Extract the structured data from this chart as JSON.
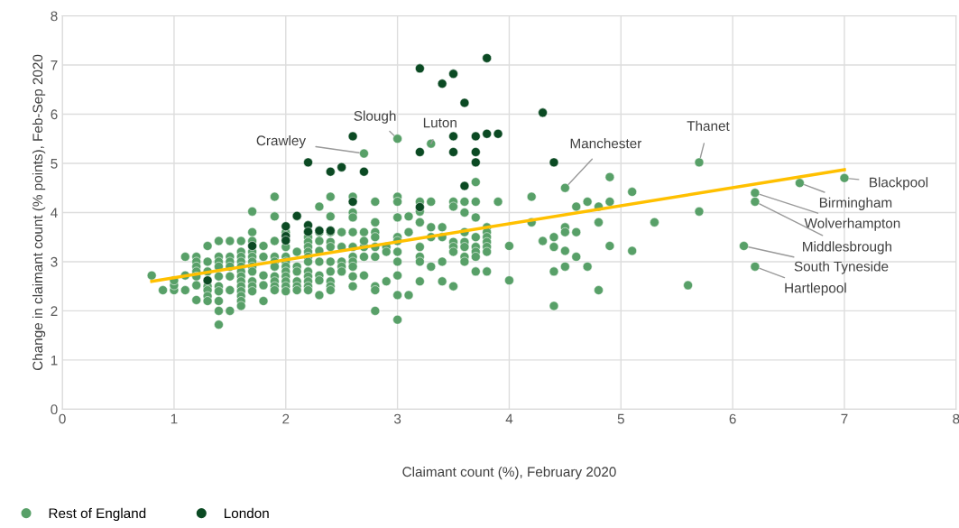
{
  "chart_data": {
    "type": "scatter",
    "xlabel": "Claimant count (%), February 2020",
    "ylabel": "Change in claimant count (% points), Feb-Sep 2020",
    "xlim": [
      0,
      8
    ],
    "ylim": [
      0,
      8
    ],
    "xticks": [
      0,
      1,
      2,
      3,
      4,
      5,
      6,
      7,
      8
    ],
    "yticks": [
      0,
      1,
      2,
      3,
      4,
      5,
      6,
      7,
      8
    ],
    "grid": true,
    "legend": "bottom left",
    "marker": "circle",
    "series": [
      {
        "name": "Rest of England",
        "color": "#58a068",
        "x": [
          0.8,
          0.9,
          1.0,
          1.0,
          1.0,
          1.1,
          1.1,
          1.1,
          1.2,
          1.2,
          1.2,
          1.2,
          1.2,
          1.2,
          1.2,
          1.3,
          1.3,
          1.3,
          1.3,
          1.3,
          1.3,
          1.3,
          1.4,
          1.4,
          1.4,
          1.4,
          1.4,
          1.4,
          1.4,
          1.4,
          1.4,
          1.4,
          1.5,
          1.5,
          1.5,
          1.5,
          1.5,
          1.5,
          1.5,
          1.6,
          1.6,
          1.6,
          1.6,
          1.6,
          1.6,
          1.6,
          1.6,
          1.6,
          1.6,
          1.6,
          1.6,
          1.6,
          1.7,
          1.7,
          1.7,
          1.7,
          1.7,
          1.7,
          1.7,
          1.7,
          1.7,
          1.7,
          1.7,
          1.8,
          1.8,
          1.8,
          1.8,
          1.8,
          1.9,
          1.9,
          1.9,
          1.9,
          1.9,
          1.9,
          1.9,
          1.9,
          1.9,
          1.9,
          2.0,
          2.0,
          2.0,
          2.0,
          2.0,
          2.0,
          2.0,
          2.0,
          2.0,
          2.0,
          2.1,
          2.1,
          2.1,
          2.1,
          2.1,
          2.1,
          2.1,
          2.2,
          2.2,
          2.2,
          2.2,
          2.2,
          2.2,
          2.2,
          2.2,
          2.2,
          2.2,
          2.2,
          2.2,
          2.3,
          2.3,
          2.3,
          2.3,
          2.3,
          2.3,
          2.3,
          2.3,
          2.4,
          2.4,
          2.4,
          2.4,
          2.4,
          2.4,
          2.4,
          2.4,
          2.4,
          2.4,
          2.5,
          2.5,
          2.5,
          2.5,
          2.5,
          2.6,
          2.6,
          2.6,
          2.6,
          2.6,
          2.6,
          2.6,
          2.6,
          2.6,
          2.6,
          2.7,
          2.7,
          2.7,
          2.7,
          2.7,
          2.8,
          2.8,
          2.8,
          2.8,
          2.8,
          2.8,
          2.8,
          2.8,
          2.8,
          2.9,
          2.9,
          2.9,
          3.0,
          3.0,
          3.0,
          3.0,
          3.0,
          3.0,
          3.0,
          3.0,
          3.0,
          3.0,
          3.1,
          3.1,
          3.1,
          3.2,
          3.2,
          3.2,
          3.2,
          3.2,
          3.2,
          3.2,
          3.3,
          3.3,
          3.3,
          3.3,
          3.4,
          3.4,
          3.4,
          3.4,
          3.5,
          3.5,
          3.5,
          3.5,
          3.5,
          3.5,
          3.6,
          3.6,
          3.6,
          3.6,
          3.6,
          3.6,
          3.6,
          3.7,
          3.7,
          3.7,
          3.7,
          3.7,
          3.7,
          3.7,
          3.7,
          3.8,
          3.8,
          3.8,
          3.8,
          3.8,
          3.8,
          3.8,
          3.9,
          4.0,
          4.0,
          4.2,
          4.2,
          4.3,
          4.4,
          4.4,
          4.4,
          4.4,
          4.5,
          4.5,
          4.5,
          4.5,
          4.6,
          4.6,
          4.6,
          4.7,
          4.7,
          4.8,
          4.8,
          4.8,
          4.9,
          4.9,
          4.9,
          5.1,
          5.1,
          5.3,
          5.6,
          5.7,
          7.0,
          6.6,
          6.2,
          6.2,
          6.1,
          6.2,
          5.7,
          4.5,
          3.3,
          3.0,
          2.7
        ],
        "values": [
          2.72,
          2.42,
          2.42,
          2.52,
          2.62,
          3.1,
          2.72,
          2.42,
          3.1,
          3.0,
          2.9,
          2.8,
          2.7,
          2.52,
          2.22,
          3.32,
          3.0,
          2.8,
          2.5,
          2.42,
          2.3,
          2.2,
          3.42,
          3.1,
          3.0,
          2.9,
          2.7,
          2.5,
          2.4,
          2.2,
          2.0,
          1.72,
          3.42,
          3.1,
          3.0,
          2.9,
          2.7,
          2.42,
          2.0,
          3.42,
          3.2,
          3.1,
          3.0,
          2.9,
          2.8,
          2.7,
          2.6,
          2.5,
          2.4,
          2.3,
          2.2,
          2.1,
          4.02,
          3.6,
          3.42,
          3.2,
          3.1,
          3.0,
          2.9,
          2.8,
          2.6,
          2.5,
          2.4,
          3.32,
          3.1,
          2.72,
          2.52,
          2.2,
          4.32,
          3.92,
          3.42,
          3.1,
          3.0,
          2.9,
          2.7,
          2.6,
          2.5,
          2.42,
          3.6,
          3.3,
          3.1,
          3.0,
          2.9,
          2.8,
          2.7,
          2.6,
          2.5,
          2.4,
          3.92,
          3.2,
          2.9,
          2.8,
          2.6,
          2.5,
          2.42,
          3.6,
          3.5,
          3.4,
          3.3,
          3.2,
          3.1,
          3.0,
          2.8,
          2.7,
          2.6,
          2.5,
          2.42,
          4.12,
          3.6,
          3.42,
          3.22,
          3.0,
          2.72,
          2.62,
          2.32,
          4.32,
          3.92,
          3.6,
          3.4,
          3.3,
          3.0,
          2.8,
          2.6,
          2.5,
          2.42,
          3.6,
          3.3,
          3.0,
          2.9,
          2.8,
          4.32,
          4.0,
          3.9,
          3.6,
          3.3,
          3.1,
          3.0,
          2.9,
          2.7,
          2.5,
          3.6,
          3.3,
          3.1,
          3.42,
          2.72,
          4.22,
          3.8,
          3.6,
          3.5,
          3.3,
          3.1,
          2.5,
          2.42,
          2.0,
          3.3,
          3.2,
          2.6,
          4.32,
          4.22,
          3.9,
          3.5,
          3.42,
          3.2,
          3.0,
          2.72,
          2.32,
          1.82,
          3.92,
          3.6,
          2.32,
          4.22,
          4.02,
          3.8,
          3.3,
          3.1,
          3.0,
          2.6,
          4.22,
          3.7,
          3.5,
          2.9,
          3.7,
          3.5,
          3.0,
          2.6,
          4.22,
          4.12,
          3.4,
          3.3,
          3.2,
          2.5,
          4.22,
          4.0,
          3.6,
          3.4,
          3.3,
          3.1,
          3.0,
          4.62,
          4.22,
          3.9,
          3.5,
          3.3,
          3.2,
          3.1,
          2.8,
          3.7,
          3.6,
          3.5,
          3.4,
          3.3,
          3.2,
          2.8,
          4.22,
          3.32,
          2.62,
          4.32,
          3.8,
          3.42,
          3.5,
          3.3,
          2.8,
          2.1,
          3.7,
          3.6,
          3.22,
          2.9,
          4.12,
          3.6,
          3.1,
          4.22,
          2.9,
          4.12,
          3.8,
          2.42,
          4.72,
          4.22,
          3.32,
          4.42,
          3.22,
          3.8,
          2.52,
          4.02,
          4.7,
          4.6,
          4.4,
          4.22,
          3.32,
          2.9,
          5.02,
          4.5,
          5.4,
          5.5,
          5.2
        ]
      },
      {
        "name": "London",
        "color": "#0b4a23",
        "x": [
          3.2,
          3.5,
          3.4,
          3.8,
          3.6,
          4.3,
          2.6,
          3.2,
          3.5,
          3.7,
          3.8,
          3.9,
          3.5,
          3.7,
          3.7,
          4.4,
          3.6,
          2.2,
          2.5,
          2.4,
          2.7,
          2.6,
          3.2,
          2.1,
          2.0,
          2.0,
          2.0,
          2.2,
          2.2,
          2.3,
          2.4,
          1.7,
          1.3
        ],
        "values": [
          6.93,
          6.82,
          6.62,
          7.14,
          6.23,
          6.03,
          5.55,
          5.23,
          5.55,
          5.55,
          5.6,
          5.6,
          5.23,
          5.23,
          5.02,
          5.02,
          4.54,
          5.02,
          4.92,
          4.83,
          4.83,
          4.22,
          4.11,
          3.93,
          3.72,
          3.52,
          3.43,
          3.74,
          3.61,
          3.63,
          3.63,
          3.32,
          2.62
        ]
      },
      {
        "type": "line",
        "marker": "none",
        "color": "#ffc000",
        "x": [
          0.8,
          7.0
        ],
        "values": [
          2.6,
          4.87
        ]
      }
    ],
    "annotations": [
      {
        "text": "Blackpool",
        "x": 7.0,
        "y": 4.7
      },
      {
        "text": "Birmingham",
        "x": 6.6,
        "y": 4.6
      },
      {
        "text": "Wolverhampton",
        "x": 6.2,
        "y": 4.4
      },
      {
        "text": "Middlesbrough",
        "x": 6.2,
        "y": 4.22
      },
      {
        "text": "South Tyneside",
        "x": 6.1,
        "y": 3.32
      },
      {
        "text": "Hartlepool",
        "x": 6.2,
        "y": 2.9
      },
      {
        "text": "Thanet",
        "x": 5.7,
        "y": 5.02
      },
      {
        "text": "Manchester",
        "x": 4.5,
        "y": 4.5
      },
      {
        "text": "Luton",
        "x": 3.3,
        "y": 5.4
      },
      {
        "text": "Slough",
        "x": 3.0,
        "y": 5.5
      },
      {
        "text": "Crawley",
        "x": 2.7,
        "y": 5.2
      }
    ]
  }
}
